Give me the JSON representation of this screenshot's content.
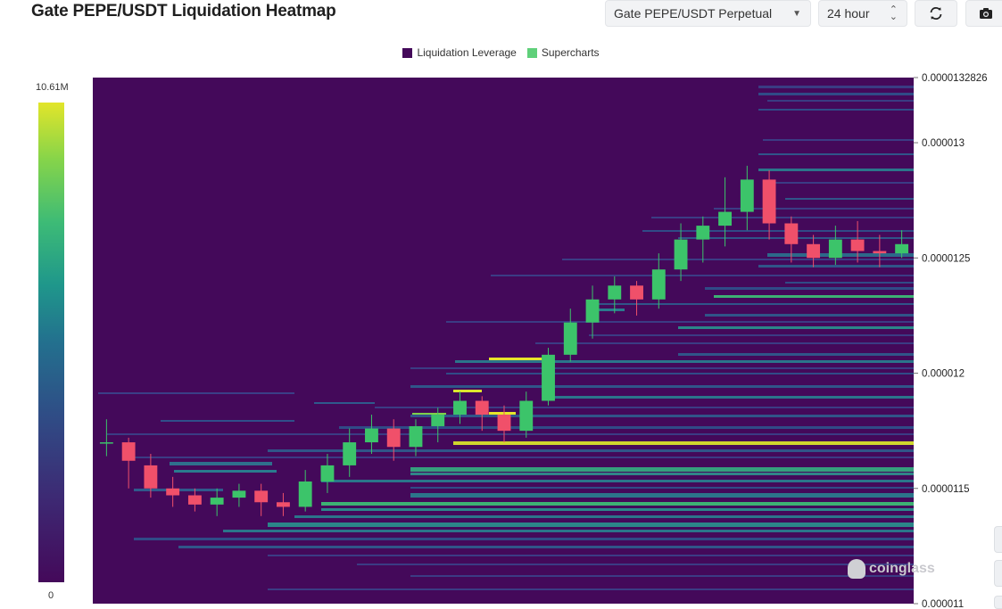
{
  "title": "Gate PEPE/USDT Liquidation Heatmap",
  "controls": {
    "pair_select": "Gate PEPE/USDT Perpetual",
    "timeframe_select": "24 hour",
    "refresh_icon": "refresh-icon",
    "camera_icon": "camera-icon"
  },
  "legend": [
    {
      "label": "Liquidation Leverage",
      "color": "#44095a"
    },
    {
      "label": "Supercharts",
      "color": "#5fd07a"
    }
  ],
  "colorbar": {
    "max_label": "10.61M",
    "min_label": "0"
  },
  "watermark": "coinglass",
  "chart_data": {
    "type": "heatmap",
    "title": "Gate PEPE/USDT Liquidation Heatmap",
    "y_axis_side": "right",
    "ylim": [
      1.1e-05,
      1.32826e-05
    ],
    "yticks": [
      "0.0000132826",
      "0.000013",
      "0.0000125",
      "0.000012",
      "0.0000115",
      "0.000011"
    ],
    "color_scale": {
      "min": 0,
      "max": 10610000,
      "min_label": "0",
      "max_label": "10.61M"
    },
    "background_color": "#44095a",
    "candles_approx": [
      [
        1.17e-05,
        1.17e-05,
        1.164e-05,
        1.18e-05
      ],
      [
        1.17e-05,
        1.162e-05,
        1.15e-05,
        1.172e-05
      ],
      [
        1.16e-05,
        1.15e-05,
        1.146e-05,
        1.165e-05
      ],
      [
        1.15e-05,
        1.147e-05,
        1.142e-05,
        1.155e-05
      ],
      [
        1.147e-05,
        1.143e-05,
        1.14e-05,
        1.15e-05
      ],
      [
        1.143e-05,
        1.146e-05,
        1.138e-05,
        1.15e-05
      ],
      [
        1.146e-05,
        1.149e-05,
        1.142e-05,
        1.152e-05
      ],
      [
        1.149e-05,
        1.144e-05,
        1.138e-05,
        1.152e-05
      ],
      [
        1.144e-05,
        1.142e-05,
        1.138e-05,
        1.148e-05
      ],
      [
        1.142e-05,
        1.153e-05,
        1.14e-05,
        1.158e-05
      ],
      [
        1.153e-05,
        1.16e-05,
        1.148e-05,
        1.165e-05
      ],
      [
        1.16e-05,
        1.17e-05,
        1.155e-05,
        1.176e-05
      ],
      [
        1.17e-05,
        1.176e-05,
        1.165e-05,
        1.182e-05
      ],
      [
        1.176e-05,
        1.168e-05,
        1.162e-05,
        1.18e-05
      ],
      [
        1.168e-05,
        1.177e-05,
        1.164e-05,
        1.18e-05
      ],
      [
        1.177e-05,
        1.182e-05,
        1.17e-05,
        1.185e-05
      ],
      [
        1.182e-05,
        1.188e-05,
        1.178e-05,
        1.192e-05
      ],
      [
        1.188e-05,
        1.182e-05,
        1.175e-05,
        1.19e-05
      ],
      [
        1.182e-05,
        1.175e-05,
        1.17e-05,
        1.186e-05
      ],
      [
        1.175e-05,
        1.188e-05,
        1.172e-05,
        1.192e-05
      ],
      [
        1.188e-05,
        1.208e-05,
        1.186e-05,
        1.211e-05
      ],
      [
        1.208e-05,
        1.222e-05,
        1.205e-05,
        1.228e-05
      ],
      [
        1.222e-05,
        1.232e-05,
        1.215e-05,
        1.238e-05
      ],
      [
        1.232e-05,
        1.238e-05,
        1.226e-05,
        1.242e-05
      ],
      [
        1.238e-05,
        1.232e-05,
        1.225e-05,
        1.24e-05
      ],
      [
        1.232e-05,
        1.245e-05,
        1.228e-05,
        1.252e-05
      ],
      [
        1.245e-05,
        1.258e-05,
        1.24e-05,
        1.265e-05
      ],
      [
        1.258e-05,
        1.264e-05,
        1.248e-05,
        1.268e-05
      ],
      [
        1.264e-05,
        1.27e-05,
        1.255e-05,
        1.285e-05
      ],
      [
        1.27e-05,
        1.284e-05,
        1.262e-05,
        1.29e-05
      ],
      [
        1.284e-05,
        1.265e-05,
        1.258e-05,
        1.288e-05
      ],
      [
        1.265e-05,
        1.256e-05,
        1.248e-05,
        1.268e-05
      ],
      [
        1.256e-05,
        1.25e-05,
        1.246e-05,
        1.26e-05
      ],
      [
        1.25e-05,
        1.258e-05,
        1.247e-05,
        1.264e-05
      ],
      [
        1.258e-05,
        1.253e-05,
        1.248e-05,
        1.266e-05
      ],
      [
        1.253e-05,
        1.252e-05,
        1.246e-05,
        1.26e-05
      ],
      [
        1.252e-05,
        1.256e-05,
        1.25e-05,
        1.262e-05
      ]
    ]
  }
}
